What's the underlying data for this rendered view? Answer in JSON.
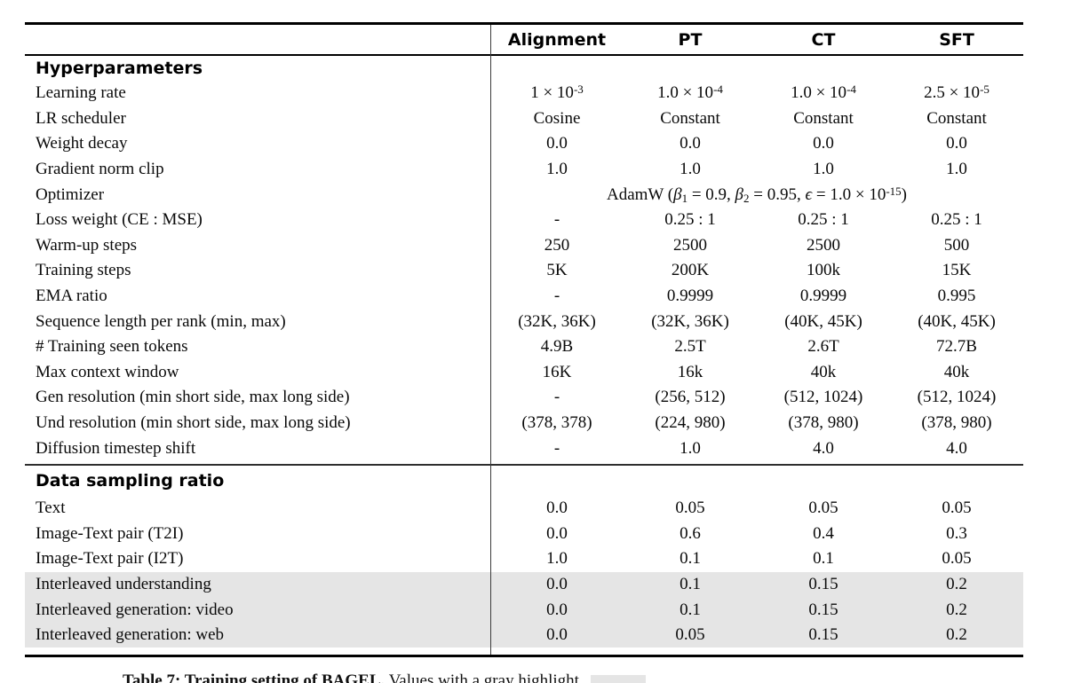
{
  "table": {
    "header": {
      "row_label": "",
      "columns": [
        "Alignment",
        "PT",
        "CT",
        "SFT"
      ]
    },
    "sections": [
      {
        "title": "Hyperparameters",
        "rows": [
          {
            "label": "Learning rate",
            "values": [
              "1 × 10^{-3}",
              "1.0 × 10^{-4}",
              "1.0 × 10^{-4}",
              "2.5 × 10^{-5}"
            ]
          },
          {
            "label": "LR scheduler",
            "values": [
              "Cosine",
              "Constant",
              "Constant",
              "Constant"
            ]
          },
          {
            "label": "Weight decay",
            "values": [
              "0.0",
              "0.0",
              "0.0",
              "0.0"
            ]
          },
          {
            "label": "Gradient norm clip",
            "values": [
              "1.0",
              "1.0",
              "1.0",
              "1.0"
            ]
          },
          {
            "label": "Optimizer",
            "span": "AdamW (*β*_{1} = 0.9, *β*_{2} = 0.95, *ϵ* = 1.0 × 10^{-15})"
          },
          {
            "label": "Loss weight (CE : MSE)",
            "values": [
              "-",
              "0.25 : 1",
              "0.25 : 1",
              "0.25 : 1"
            ]
          },
          {
            "label": "Warm-up steps",
            "values": [
              "250",
              "2500",
              "2500",
              "500"
            ]
          },
          {
            "label": "Training steps",
            "values": [
              "5K",
              "200K",
              "100k",
              "15K"
            ]
          },
          {
            "label": "EMA ratio",
            "values": [
              "-",
              "0.9999",
              "0.9999",
              "0.995"
            ]
          },
          {
            "label": "Sequence length per rank (min, max)",
            "values": [
              "(32K, 36K)",
              "(32K, 36K)",
              "(40K, 45K)",
              "(40K, 45K)"
            ]
          },
          {
            "label": "# Training seen tokens",
            "values": [
              "4.9B",
              "2.5T",
              "2.6T",
              "72.7B"
            ]
          },
          {
            "label": "Max context window",
            "values": [
              "16K",
              "16k",
              "40k",
              "40k"
            ]
          },
          {
            "label": "Gen resolution (min short side, max long side)",
            "values": [
              "-",
              "(256, 512)",
              "(512, 1024)",
              "(512, 1024)"
            ]
          },
          {
            "label": "Und resolution (min short side, max long side)",
            "values": [
              "(378, 378)",
              "(224, 980)",
              "(378, 980)",
              "(378, 980)"
            ]
          },
          {
            "label": "Diffusion timestep shift",
            "values": [
              "-",
              "1.0",
              "4.0",
              "4.0"
            ]
          }
        ]
      },
      {
        "title": "Data sampling ratio",
        "rows": [
          {
            "label": "Text",
            "values": [
              "0.0",
              "0.05",
              "0.05",
              "0.05"
            ]
          },
          {
            "label": "Image-Text pair (T2I)",
            "values": [
              "0.0",
              "0.6",
              "0.4",
              "0.3"
            ]
          },
          {
            "label": "Image-Text pair (I2T)",
            "values": [
              "1.0",
              "0.1",
              "0.1",
              "0.05"
            ]
          },
          {
            "label": "Interleaved understanding",
            "values": [
              "0.0",
              "0.1",
              "0.15",
              "0.2"
            ],
            "highlight": true
          },
          {
            "label": "Interleaved generation: video",
            "values": [
              "0.0",
              "0.1",
              "0.15",
              "0.2"
            ],
            "highlight": true
          },
          {
            "label": "Interleaved generation: web",
            "values": [
              "0.0",
              "0.05",
              "0.15",
              "0.2"
            ],
            "highlight": true
          }
        ]
      }
    ],
    "caption": {
      "prefix": "Table 7: Training setting of BAGEL.",
      "text": "Values with a gray highlight",
      "swatch_color": "#e5e5e5"
    }
  },
  "colors": {
    "highlight_row": "#e5e5e5",
    "rule": "#000000"
  }
}
